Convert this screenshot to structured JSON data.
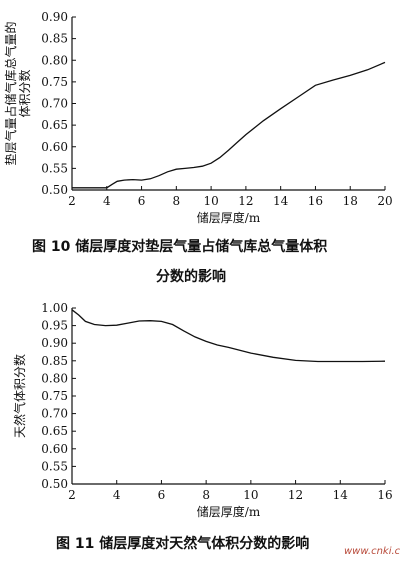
{
  "chart_data": [
    {
      "type": "line",
      "xlabel": "储层厚度/m",
      "ylabel_line1": "垫层气量占储气库总气量的",
      "ylabel_line2": "体积分数",
      "xlim": [
        2,
        20
      ],
      "ylim": [
        0.5,
        0.9
      ],
      "xticks": [
        2,
        4,
        6,
        8,
        10,
        12,
        14,
        16,
        18,
        20
      ],
      "yticks": [
        "0.50",
        "0.55",
        "0.60",
        "0.65",
        "0.70",
        "0.75",
        "0.80",
        "0.85",
        "0.90"
      ],
      "grid": false,
      "x": [
        2,
        3,
        4,
        4.3,
        4.6,
        5,
        5.5,
        6,
        6.5,
        7,
        7.5,
        8,
        8.5,
        9,
        9.5,
        10,
        10.5,
        11,
        11.5,
        12,
        13,
        14,
        15,
        16,
        17,
        18,
        19,
        20
      ],
      "y": [
        0.505,
        0.505,
        0.505,
        0.513,
        0.52,
        0.523,
        0.524,
        0.523,
        0.526,
        0.533,
        0.542,
        0.548,
        0.55,
        0.552,
        0.555,
        0.562,
        0.575,
        0.592,
        0.61,
        0.628,
        0.66,
        0.688,
        0.715,
        0.742,
        0.754,
        0.765,
        0.778,
        0.795
      ]
    },
    {
      "type": "line",
      "xlabel": "储层厚度/m",
      "ylabel": "天然气体积分数",
      "xlim": [
        2,
        16
      ],
      "ylim": [
        0.5,
        1.0
      ],
      "xticks": [
        2,
        4,
        6,
        8,
        10,
        12,
        14,
        16
      ],
      "yticks": [
        "0.50",
        "0.55",
        "0.60",
        "0.65",
        "0.70",
        "0.75",
        "0.80",
        "0.85",
        "0.90",
        "0.95",
        "1.00"
      ],
      "grid": false,
      "x": [
        2,
        2.3,
        2.6,
        3,
        3.5,
        4,
        4.5,
        5,
        5.5,
        6,
        6.5,
        7,
        7.5,
        8,
        8.5,
        9,
        10,
        11,
        12,
        13,
        14,
        15,
        16
      ],
      "y": [
        0.995,
        0.98,
        0.962,
        0.953,
        0.95,
        0.951,
        0.957,
        0.963,
        0.964,
        0.962,
        0.953,
        0.935,
        0.918,
        0.905,
        0.895,
        0.888,
        0.872,
        0.86,
        0.851,
        0.848,
        0.848,
        0.848,
        0.849
      ]
    }
  ],
  "captions": {
    "fig10_line1": "图 10   储层厚度对垫层气量占储气库总气量体积",
    "fig10_line2": "分数的影响",
    "fig11": "图 11   储层厚度对天然气体积分数的影响"
  },
  "watermark": "www.cnki.cn"
}
